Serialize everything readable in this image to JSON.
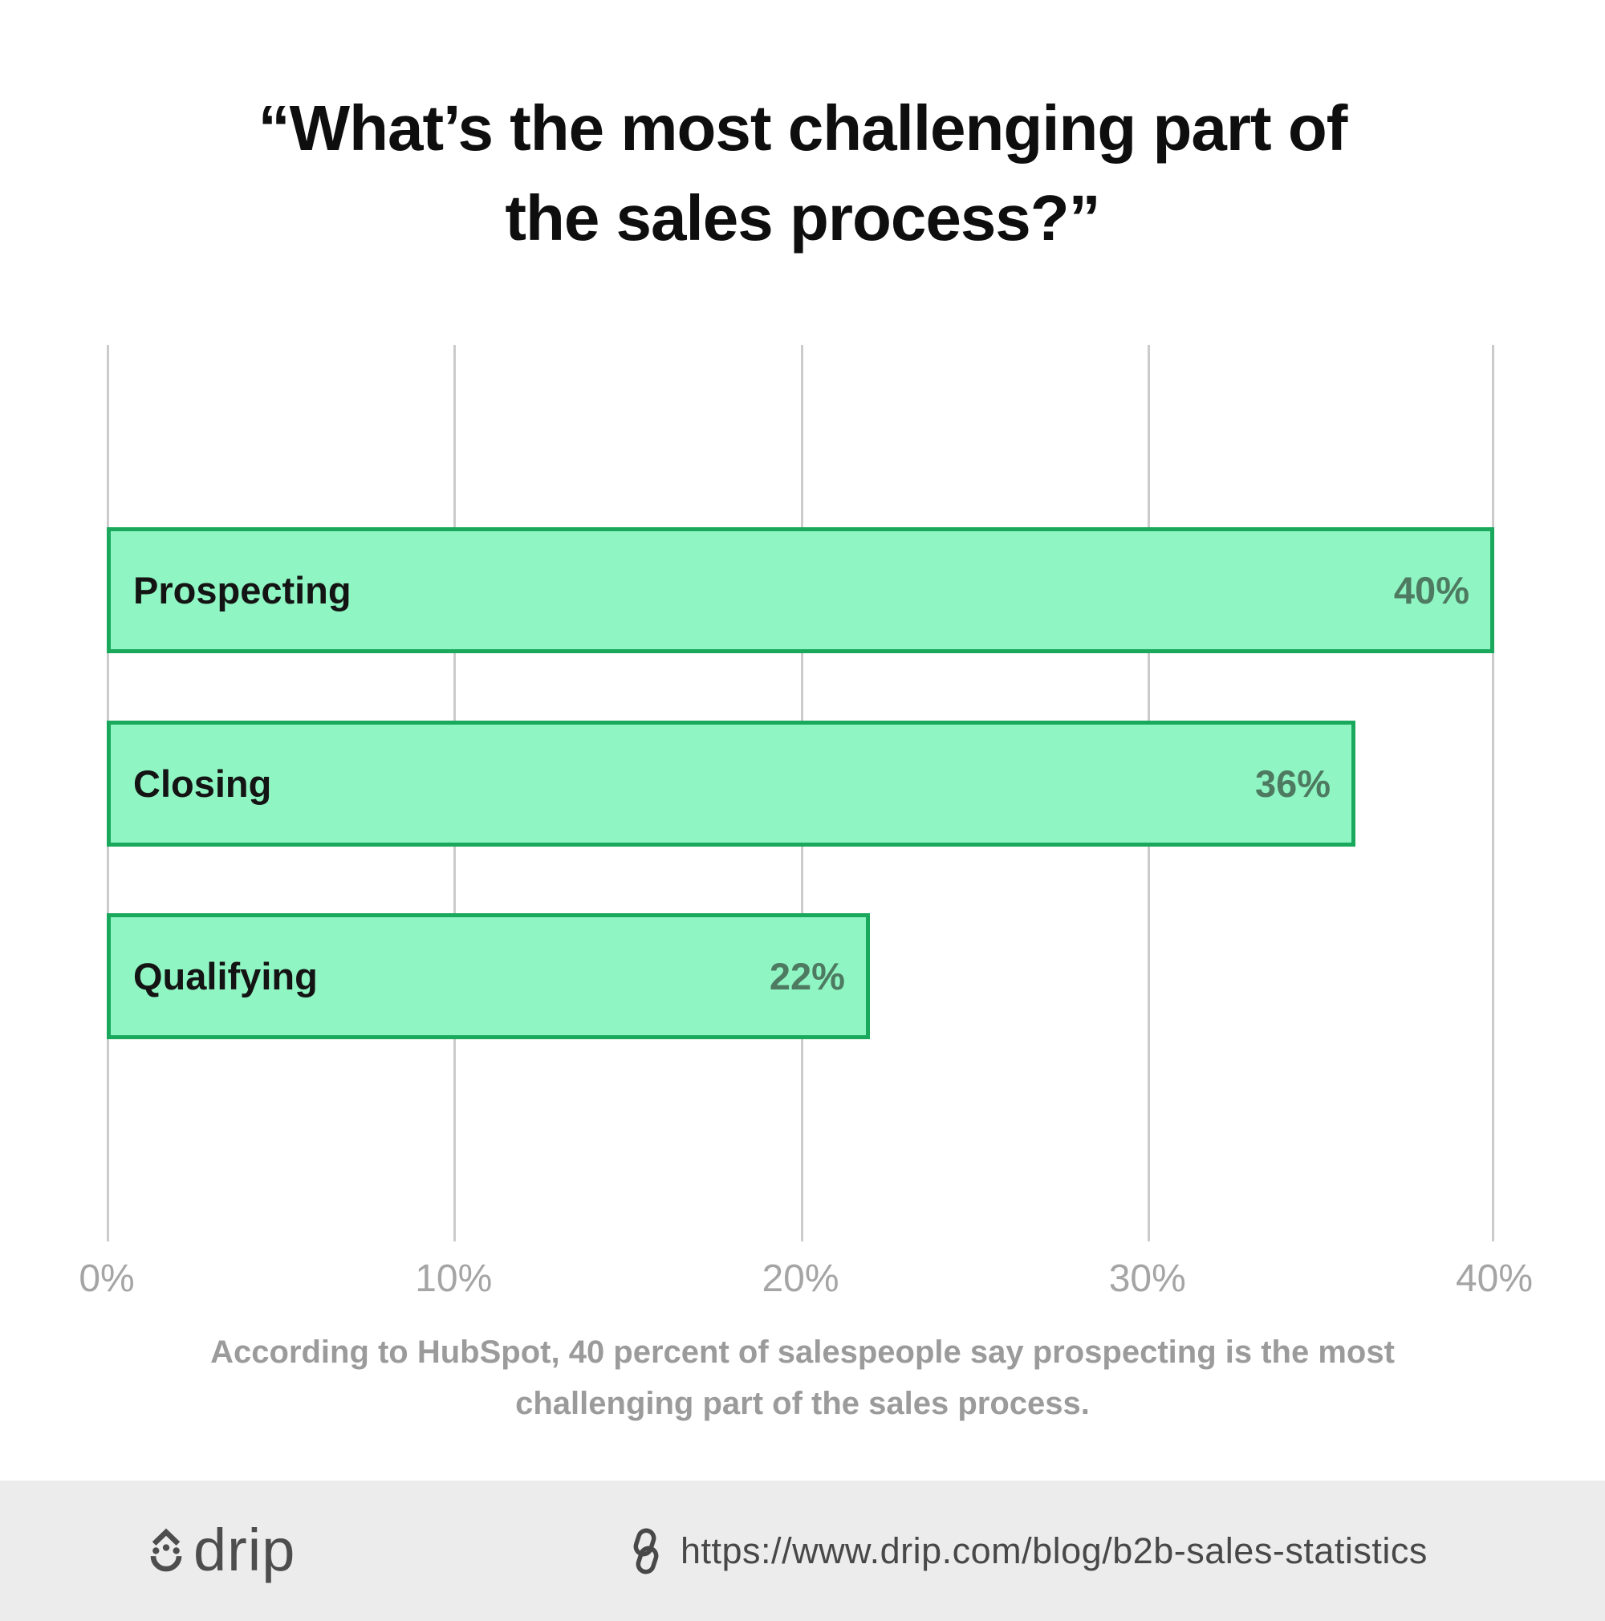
{
  "title": {
    "lines": [
      "“What’s the most challenging part of",
      "the sales process?”"
    ]
  },
  "chart_data": {
    "type": "bar",
    "orientation": "horizontal",
    "title": "“What’s the most challenging part of the sales process?”",
    "categories": [
      "Prospecting",
      "Closing",
      "Qualifying"
    ],
    "values": [
      40,
      36,
      22
    ],
    "value_labels": [
      "40%",
      "36%",
      "22%"
    ],
    "x_ticks": [
      "0%",
      "10%",
      "20%",
      "30%",
      "40%"
    ],
    "xlabel": "",
    "ylabel": "",
    "xlim": [
      0,
      40
    ],
    "grid": true,
    "legend": false,
    "bar_fill": "#8ff5c2",
    "bar_border": "#1aa85c",
    "gridline_color": "#cbcbcb",
    "value_label_color": "#4e7a61",
    "category_label_color": "#141414"
  },
  "caption": "According to HubSpot, 40 percent of salespeople say prospecting is the most challenging part of the sales process.",
  "footer": {
    "brand": "drip",
    "url": "https://www.drip.com/blog/b2b-sales-statistics",
    "background": "#ececec",
    "text_color": "#4d4d4d"
  }
}
